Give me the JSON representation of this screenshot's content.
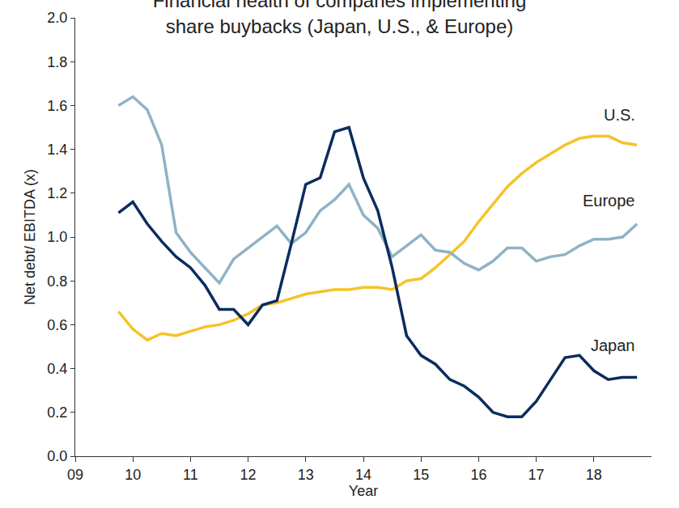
{
  "chart_data": {
    "type": "line",
    "title": "Financial health of companes implementing share buybacks (Japan, U.S., & Europe)",
    "x_label": "Year",
    "y_label": "Net debt/ EBITDA (x)",
    "x": [
      9.75,
      10.0,
      10.25,
      10.5,
      10.75,
      11.0,
      11.25,
      11.5,
      11.75,
      12.0,
      12.25,
      12.5,
      12.75,
      13.0,
      13.25,
      13.5,
      13.75,
      14.0,
      14.25,
      14.5,
      14.75,
      15.0,
      15.25,
      15.5,
      15.75,
      16.0,
      16.25,
      16.5,
      16.75,
      17.0,
      17.25,
      17.5,
      17.75,
      18.0,
      18.25,
      18.5,
      18.75
    ],
    "series": [
      {
        "name": "U.S.",
        "color": "#f5c327",
        "values": [
          0.66,
          0.58,
          0.53,
          0.56,
          0.55,
          0.57,
          0.59,
          0.6,
          0.62,
          0.65,
          0.69,
          0.7,
          0.72,
          0.74,
          0.75,
          0.76,
          0.76,
          0.77,
          0.77,
          0.76,
          0.8,
          0.81,
          0.86,
          0.92,
          0.98,
          1.07,
          1.15,
          1.23,
          1.29,
          1.34,
          1.38,
          1.42,
          1.45,
          1.46,
          1.46,
          1.43,
          1.42
        ]
      },
      {
        "name": "Europe",
        "color": "#8fb2c5",
        "values": [
          1.6,
          1.64,
          1.58,
          1.42,
          1.02,
          0.93,
          0.86,
          0.79,
          0.9,
          0.95,
          1.0,
          1.05,
          0.97,
          1.02,
          1.12,
          1.17,
          1.24,
          1.1,
          1.04,
          0.91,
          0.96,
          1.01,
          0.94,
          0.93,
          0.88,
          0.85,
          0.89,
          0.95,
          0.95,
          0.89,
          0.91,
          0.92,
          0.96,
          0.99,
          0.99,
          1.0,
          1.06
        ]
      },
      {
        "name": "Japan",
        "color": "#0b2c5e",
        "values": [
          1.11,
          1.16,
          1.06,
          0.98,
          0.91,
          0.86,
          0.78,
          0.67,
          0.67,
          0.6,
          0.69,
          0.71,
          0.97,
          1.24,
          1.27,
          1.48,
          1.5,
          1.27,
          1.12,
          0.86,
          0.55,
          0.46,
          0.42,
          0.35,
          0.32,
          0.27,
          0.2,
          0.18,
          0.18,
          0.25,
          0.35,
          0.45,
          0.46,
          0.39,
          0.35,
          0.36,
          0.36
        ]
      }
    ],
    "xlim": [
      9,
      19
    ],
    "xticks": [
      {
        "value": 9,
        "label": "09"
      },
      10,
      11,
      12,
      13,
      14,
      15,
      16,
      17,
      18
    ],
    "ylim": [
      0,
      2
    ],
    "yticks": [
      {
        "value": 0,
        "label": "0.0"
      },
      0.2,
      0.4,
      0.6,
      0.8,
      {
        "value": 1,
        "label": "1.0"
      },
      1.2,
      1.4,
      1.6,
      1.8,
      {
        "value": 2,
        "label": "2.0"
      }
    ],
    "grid": false
  }
}
